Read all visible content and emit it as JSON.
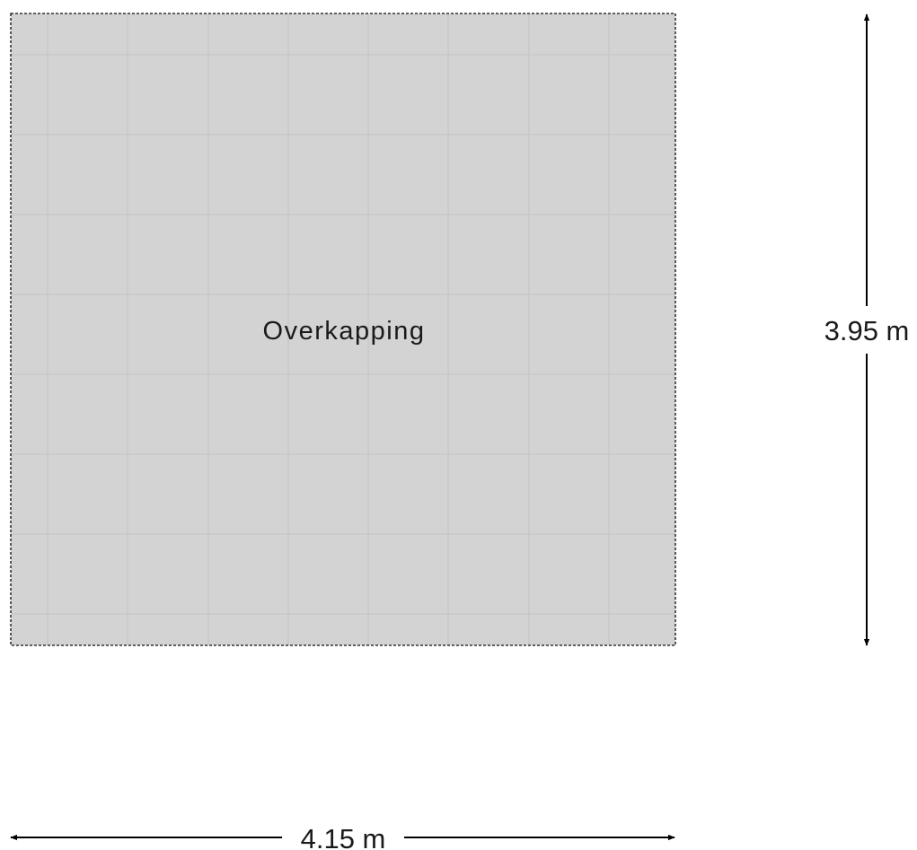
{
  "plan": {
    "room": {
      "name": "Overkapping",
      "fill_color": "#d3d3d3",
      "tile_line_color": "#c9c9c9",
      "border_color": "#333333"
    },
    "dimensions": {
      "width_label": "4.15 m",
      "height_label": "3.95 m"
    },
    "line_color": "#000000"
  }
}
